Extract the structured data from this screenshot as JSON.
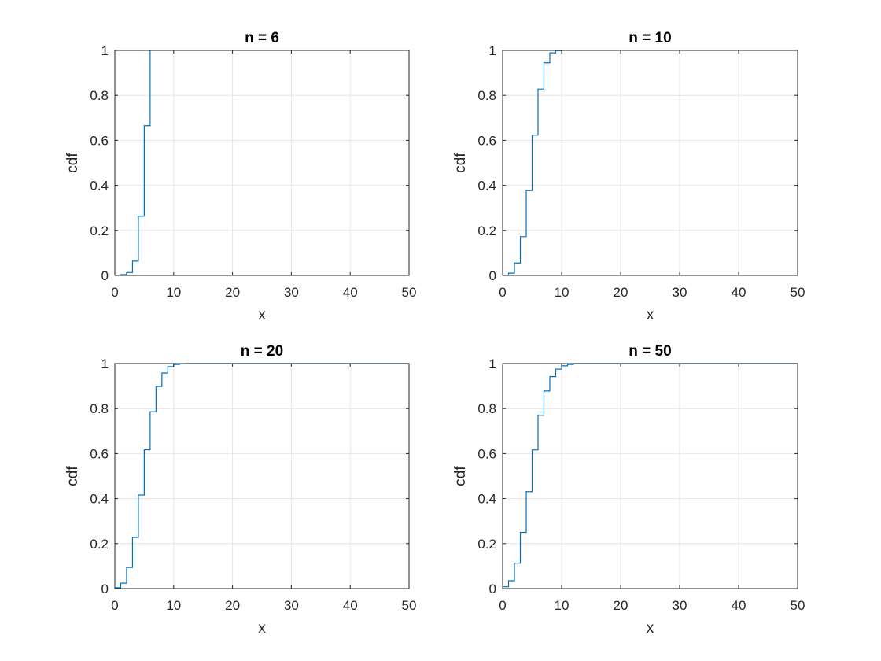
{
  "chart_data": [
    {
      "type": "line",
      "style": "stairs",
      "title": "n = 6",
      "xlabel": "x",
      "ylabel": "cdf",
      "xlim": [
        0,
        50
      ],
      "ylim": [
        0,
        1
      ],
      "xticks": [
        0,
        10,
        20,
        30,
        40,
        50
      ],
      "yticks": [
        0,
        0.2,
        0.4,
        0.6,
        0.8,
        1
      ],
      "xtick_labels": [
        "0",
        "10",
        "20",
        "30",
        "40",
        "50"
      ],
      "ytick_labels": [
        "0",
        "0.2",
        "0.4",
        "0.6",
        "0.8",
        "1"
      ],
      "grid": true,
      "series": [
        {
          "name": "cdf",
          "color": "#0072bd",
          "x": [
            0,
            1,
            2,
            3,
            4,
            5,
            6
          ],
          "y": [
            0.0002,
            0.0036,
            0.0129,
            0.0634,
            0.2632,
            0.6651,
            1.0
          ]
        }
      ]
    },
    {
      "type": "line",
      "style": "stairs",
      "title": "n = 10",
      "xlabel": "x",
      "ylabel": "cdf",
      "xlim": [
        0,
        50
      ],
      "ylim": [
        0,
        1
      ],
      "xticks": [
        0,
        10,
        20,
        30,
        40,
        50
      ],
      "yticks": [
        0,
        0.2,
        0.4,
        0.6,
        0.8,
        1
      ],
      "xtick_labels": [
        "0",
        "10",
        "20",
        "30",
        "40",
        "50"
      ],
      "ytick_labels": [
        "0",
        "0.2",
        "0.4",
        "0.6",
        "0.8",
        "1"
      ],
      "grid": true,
      "series": [
        {
          "name": "cdf",
          "color": "#0072bd",
          "x": [
            0,
            1,
            2,
            3,
            4,
            5,
            6,
            7,
            8,
            9,
            10
          ],
          "y": [
            0.001,
            0.01,
            0.055,
            0.172,
            0.377,
            0.623,
            0.828,
            0.945,
            0.989,
            0.999,
            1.0
          ]
        }
      ]
    },
    {
      "type": "line",
      "style": "stairs",
      "title": "n = 20",
      "xlabel": "x",
      "ylabel": "cdf",
      "xlim": [
        0,
        50
      ],
      "ylim": [
        0,
        1
      ],
      "xticks": [
        0,
        10,
        20,
        30,
        40,
        50
      ],
      "yticks": [
        0,
        0.2,
        0.4,
        0.6,
        0.8,
        1
      ],
      "xtick_labels": [
        "0",
        "10",
        "20",
        "30",
        "40",
        "50"
      ],
      "ytick_labels": [
        "0",
        "0.2",
        "0.4",
        "0.6",
        "0.8",
        "1"
      ],
      "grid": true,
      "series": [
        {
          "name": "cdf",
          "color": "#0072bd",
          "x": [
            0,
            1,
            2,
            3,
            4,
            5,
            6,
            7,
            8,
            9,
            10,
            11,
            12,
            20,
            30,
            40,
            50
          ],
          "y": [
            0.004,
            0.024,
            0.094,
            0.227,
            0.416,
            0.617,
            0.786,
            0.898,
            0.958,
            0.986,
            0.996,
            0.999,
            1.0,
            1.0,
            1.0,
            1.0,
            1.0
          ]
        }
      ]
    },
    {
      "type": "line",
      "style": "stairs",
      "title": "n = 50",
      "xlabel": "x",
      "ylabel": "cdf",
      "xlim": [
        0,
        50
      ],
      "ylim": [
        0,
        1
      ],
      "xticks": [
        0,
        10,
        20,
        30,
        40,
        50
      ],
      "yticks": [
        0,
        0.2,
        0.4,
        0.6,
        0.8,
        1
      ],
      "xtick_labels": [
        "0",
        "10",
        "20",
        "30",
        "40",
        "50"
      ],
      "ytick_labels": [
        "0",
        "0.2",
        "0.4",
        "0.6",
        "0.8",
        "1"
      ],
      "grid": true,
      "series": [
        {
          "name": "cdf",
          "color": "#0072bd",
          "x": [
            0,
            1,
            2,
            3,
            4,
            5,
            6,
            7,
            8,
            9,
            10,
            11,
            12,
            20,
            30,
            40,
            50
          ],
          "y": [
            0.008,
            0.035,
            0.113,
            0.25,
            0.431,
            0.616,
            0.77,
            0.878,
            0.942,
            0.975,
            0.99,
            0.996,
            1.0,
            1.0,
            1.0,
            1.0,
            1.0
          ]
        }
      ]
    }
  ]
}
